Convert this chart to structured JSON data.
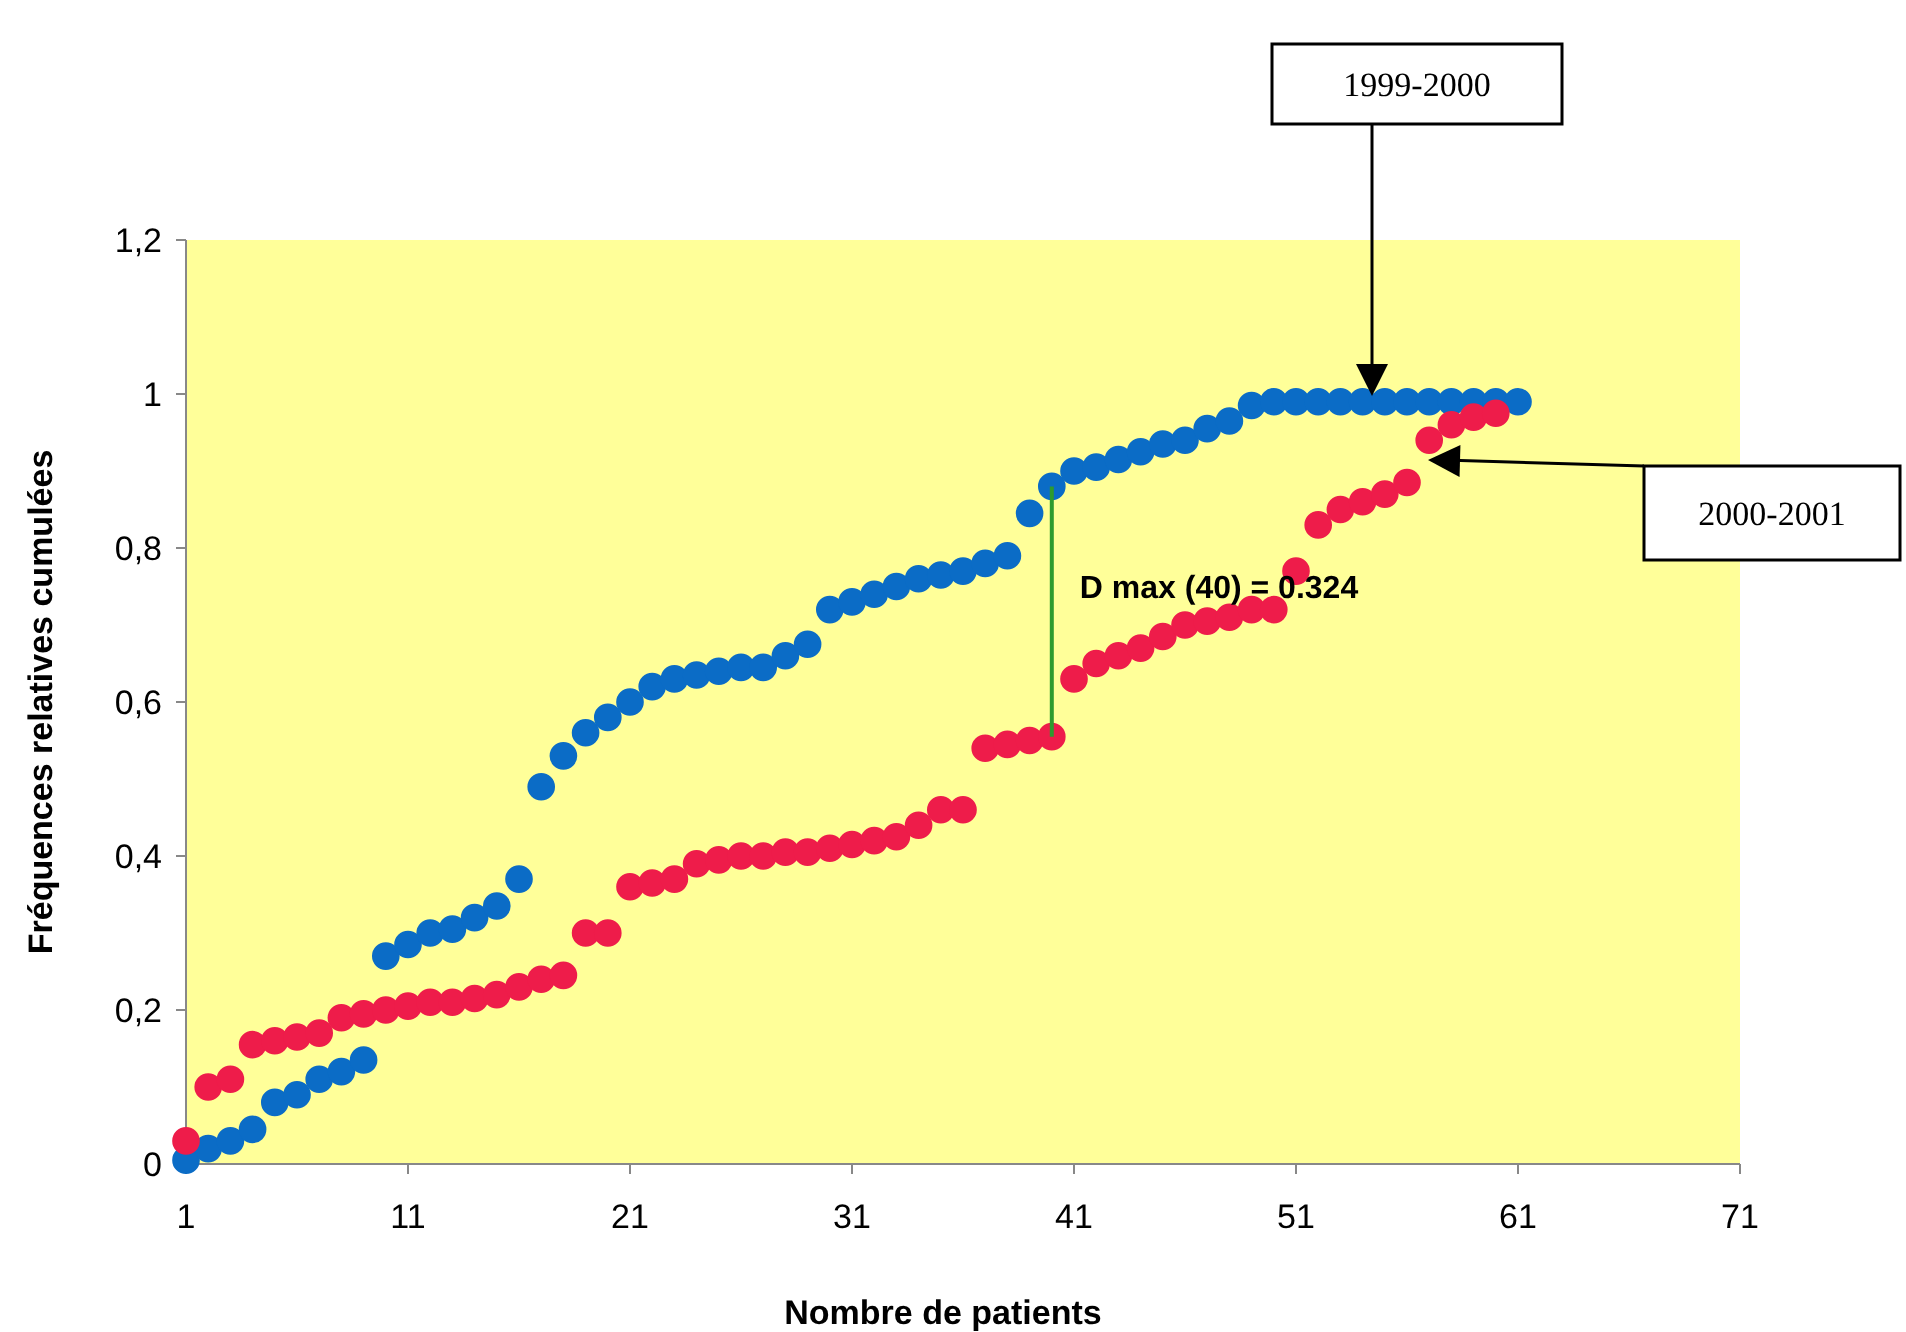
{
  "chart_data": {
    "type": "scatter",
    "xlabel": "Nombre de patients",
    "ylabel": "Fréquences relatives cumulées",
    "x": [
      1,
      2,
      3,
      4,
      5,
      6,
      7,
      8,
      9,
      10,
      11,
      12,
      13,
      14,
      15,
      16,
      17,
      18,
      19,
      20,
      21,
      22,
      23,
      24,
      25,
      26,
      27,
      28,
      29,
      30,
      31,
      32,
      33,
      34,
      35,
      36,
      37,
      38,
      39,
      40,
      41,
      42,
      43,
      44,
      45,
      46,
      47,
      48,
      49,
      50,
      51,
      52,
      53,
      54,
      55,
      56,
      57,
      58,
      59,
      60,
      61
    ],
    "series": [
      {
        "color": "#0b6cc6",
        "values": [
          0.005,
          0.02,
          0.03,
          0.045,
          0.08,
          0.09,
          0.11,
          0.12,
          0.135,
          0.27,
          0.285,
          0.3,
          0.305,
          0.32,
          0.335,
          0.37,
          0.49,
          0.53,
          0.56,
          0.58,
          0.6,
          0.62,
          0.63,
          0.635,
          0.64,
          0.645,
          0.645,
          0.66,
          0.675,
          0.72,
          0.73,
          0.74,
          0.75,
          0.76,
          0.765,
          0.77,
          0.78,
          0.79,
          0.845,
          0.88,
          0.9,
          0.905,
          0.915,
          0.925,
          0.935,
          0.94,
          0.955,
          0.965,
          0.985,
          0.99,
          0.99,
          0.99,
          0.99,
          0.99,
          0.99,
          0.99,
          0.99,
          0.99,
          0.99,
          0.99,
          0.99
        ]
      },
      {
        "color": "#ee1c4a",
        "values": [
          0.03,
          0.1,
          0.11,
          0.155,
          0.16,
          0.165,
          0.17,
          0.19,
          0.195,
          0.2,
          0.205,
          0.21,
          0.21,
          0.215,
          0.22,
          0.23,
          0.24,
          0.245,
          0.3,
          0.3,
          0.36,
          0.365,
          0.37,
          0.39,
          0.395,
          0.4,
          0.4,
          0.405,
          0.405,
          0.41,
          0.415,
          0.42,
          0.425,
          0.44,
          0.46,
          0.46,
          0.54,
          0.545,
          0.55,
          0.555,
          0.63,
          0.65,
          0.66,
          0.67,
          0.685,
          0.7,
          0.705,
          0.71,
          0.72,
          0.72,
          0.77,
          0.83,
          0.85,
          0.86,
          0.87,
          0.885,
          0.94,
          0.96,
          0.97,
          0.975,
          null
        ]
      },
      {
        "type": "line",
        "color": "#2e9b2e",
        "marker": "none",
        "x": [
          40,
          40
        ],
        "values": [
          0.555,
          0.88
        ]
      }
    ],
    "annotations": [
      "1999-2000",
      "2000-2001",
      {
        "text": "D max (40) = 0.324",
        "x": 40,
        "y": 0.72
      }
    ],
    "marker": "circle",
    "xlim": [
      1,
      71
    ],
    "xticks": [
      1,
      11,
      21,
      31,
      41,
      51,
      61,
      71
    ],
    "ylim": [
      0,
      1.2
    ],
    "yticks": [
      0,
      {
        "value": 0.2,
        "label": "0,2"
      },
      {
        "value": 0.4,
        "label": "0,4"
      },
      {
        "value": 0.6,
        "label": "0,6"
      },
      {
        "value": 0.8,
        "label": "0,8"
      },
      1,
      {
        "value": 1.2,
        "label": "1,2"
      }
    ],
    "grid": false
  }
}
